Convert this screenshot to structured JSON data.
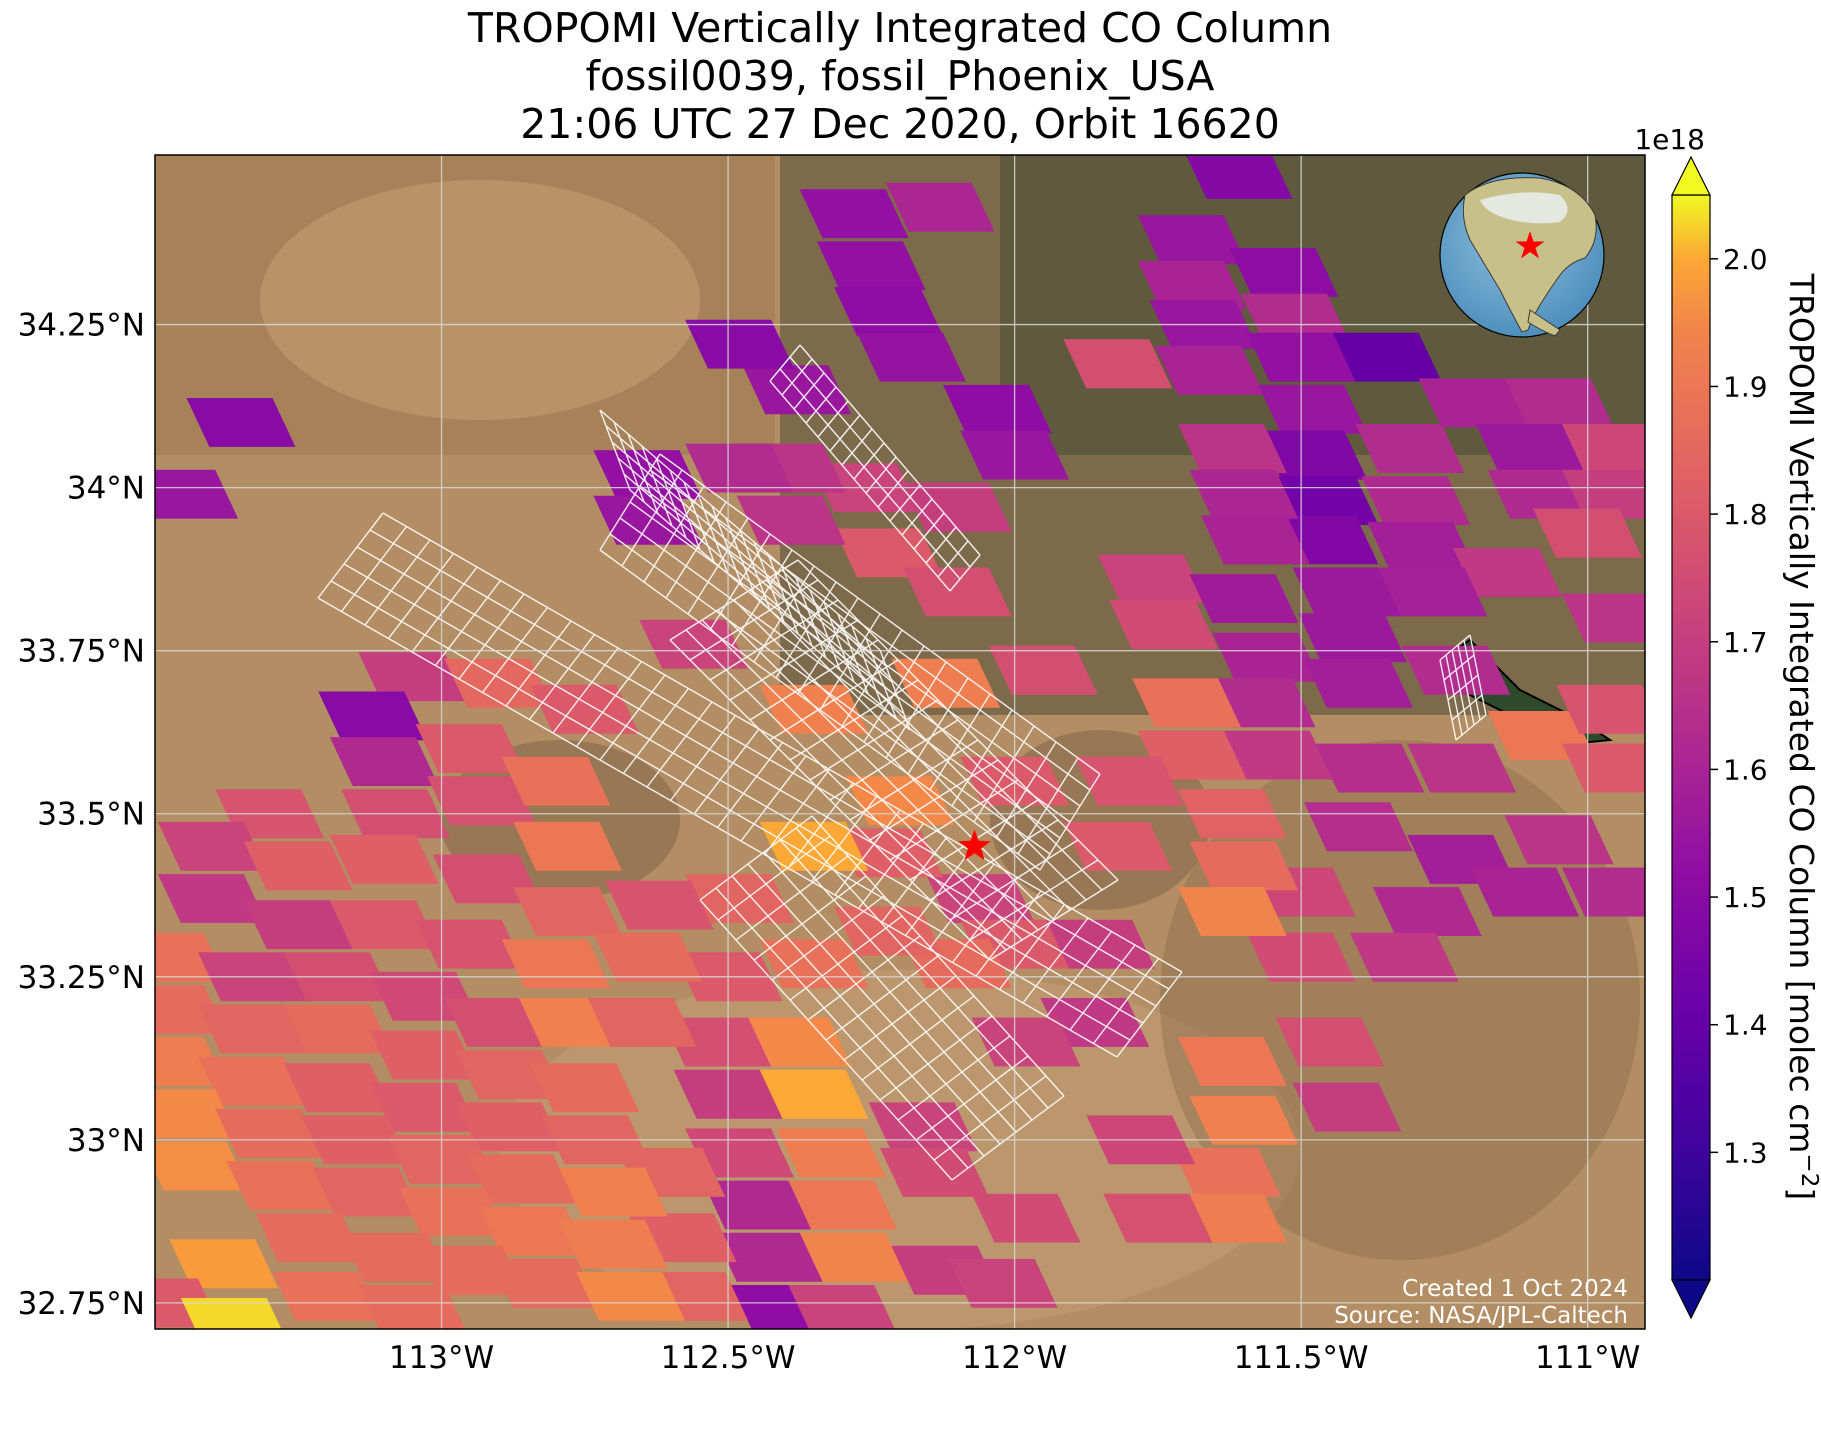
{
  "title": {
    "line1": "TROPOMI Vertically Integrated CO Column",
    "line2": "fossil0039, fossil_Phoenix_USA",
    "line3": "21:06 UTC 27 Dec 2020, Orbit 16620"
  },
  "map": {
    "extent": {
      "lon_min": -113.5,
      "lon_max": -110.9,
      "lat_min": 32.71,
      "lat_max": 34.51
    },
    "site_marker": {
      "lon": -112.07,
      "lat": 33.45,
      "symbol": "star",
      "color": "#ff0000"
    },
    "lat_tick_labels": [
      {
        "lat": 34.25,
        "label": "34.25°N"
      },
      {
        "lat": 34.0,
        "label": "34°N"
      },
      {
        "lat": 33.75,
        "label": "33.75°N"
      },
      {
        "lat": 33.5,
        "label": "33.5°N"
      },
      {
        "lat": 33.25,
        "label": "33.25°N"
      },
      {
        "lat": 33.0,
        "label": "33°N"
      },
      {
        "lat": 32.75,
        "label": "32.75°N"
      }
    ],
    "lon_tick_labels": [
      {
        "lon": -113.0,
        "label": "113°W"
      },
      {
        "lon": -112.5,
        "label": "112.5°W"
      },
      {
        "lon": -112.0,
        "label": "112°W"
      },
      {
        "lon": -111.5,
        "label": "111.5°W"
      },
      {
        "lon": -111.0,
        "label": "111°W"
      }
    ],
    "gridlines": true,
    "basemap": "satellite imagery",
    "inset_globe": {
      "placement": "top-right",
      "marker": "red star over Arizona, USA"
    },
    "credits": {
      "created": "Created 1 Oct 2024",
      "source": "Source: NASA/JPL-Caltech"
    }
  },
  "colorbar": {
    "label": "TROPOMI Vertically Integrated CO Column [molec cm",
    "label_sup": "−2",
    "label_end": "]",
    "multiplier": "1e18",
    "colormap": "plasma",
    "vmin": 1.2,
    "vmax": 2.05,
    "extend": "both",
    "ticks": [
      {
        "value": 1.3,
        "label": "1.3"
      },
      {
        "value": 1.4,
        "label": "1.4"
      },
      {
        "value": 1.5,
        "label": "1.5"
      },
      {
        "value": 1.6,
        "label": "1.6"
      },
      {
        "value": 1.7,
        "label": "1.7"
      },
      {
        "value": 1.8,
        "label": "1.8"
      },
      {
        "value": 1.9,
        "label": "1.9"
      },
      {
        "value": 2.0,
        "label": "2.0"
      }
    ]
  },
  "chart_data": {
    "type": "heatmap",
    "colormap": "plasma",
    "value_units": "1e18 molec cm^-2",
    "pixels": [
      {
        "lon": -111.61,
        "lat": 34.48,
        "v": 1.49
      },
      {
        "lon": -112.28,
        "lat": 34.42,
        "v": 1.53
      },
      {
        "lon": -112.13,
        "lat": 34.43,
        "v": 1.61
      },
      {
        "lon": -112.25,
        "lat": 34.34,
        "v": 1.53
      },
      {
        "lon": -112.22,
        "lat": 34.27,
        "v": 1.52
      },
      {
        "lon": -112.18,
        "lat": 34.2,
        "v": 1.54
      },
      {
        "lon": -111.69,
        "lat": 34.38,
        "v": 1.55
      },
      {
        "lon": -111.69,
        "lat": 34.31,
        "v": 1.6
      },
      {
        "lon": -111.53,
        "lat": 34.33,
        "v": 1.51
      },
      {
        "lon": -111.67,
        "lat": 34.25,
        "v": 1.55
      },
      {
        "lon": -111.51,
        "lat": 34.26,
        "v": 1.63
      },
      {
        "lon": -111.82,
        "lat": 34.19,
        "v": 1.76
      },
      {
        "lon": -111.66,
        "lat": 34.18,
        "v": 1.6
      },
      {
        "lon": -111.5,
        "lat": 34.2,
        "v": 1.53
      },
      {
        "lon": -111.35,
        "lat": 34.2,
        "v": 1.4
      },
      {
        "lon": -111.48,
        "lat": 34.12,
        "v": 1.55
      },
      {
        "lon": -111.48,
        "lat": 34.05,
        "v": 1.47
      },
      {
        "lon": -111.46,
        "lat": 33.98,
        "v": 1.44
      },
      {
        "lon": -111.46,
        "lat": 33.92,
        "v": 1.48
      },
      {
        "lon": -111.62,
        "lat": 34.06,
        "v": 1.66
      },
      {
        "lon": -111.6,
        "lat": 33.99,
        "v": 1.61
      },
      {
        "lon": -111.58,
        "lat": 33.92,
        "v": 1.6
      },
      {
        "lon": -111.31,
        "lat": 34.06,
        "v": 1.63
      },
      {
        "lon": -111.3,
        "lat": 33.98,
        "v": 1.62
      },
      {
        "lon": -111.29,
        "lat": 33.91,
        "v": 1.58
      },
      {
        "lon": -111.2,
        "lat": 34.13,
        "v": 1.6
      },
      {
        "lon": -111.05,
        "lat": 34.13,
        "v": 1.63
      },
      {
        "lon": -111.1,
        "lat": 34.06,
        "v": 1.56
      },
      {
        "lon": -110.95,
        "lat": 34.06,
        "v": 1.73
      },
      {
        "lon": -111.08,
        "lat": 33.99,
        "v": 1.62
      },
      {
        "lon": -110.95,
        "lat": 33.99,
        "v": 1.7
      },
      {
        "lon": -111.0,
        "lat": 33.93,
        "v": 1.76
      },
      {
        "lon": -111.14,
        "lat": 33.87,
        "v": 1.68
      },
      {
        "lon": -110.95,
        "lat": 33.8,
        "v": 1.66
      },
      {
        "lon": -111.76,
        "lat": 33.86,
        "v": 1.72
      },
      {
        "lon": -111.74,
        "lat": 33.79,
        "v": 1.75
      },
      {
        "lon": -111.6,
        "lat": 33.83,
        "v": 1.57
      },
      {
        "lon": -111.56,
        "lat": 33.74,
        "v": 1.6
      },
      {
        "lon": -111.57,
        "lat": 33.67,
        "v": 1.63
      },
      {
        "lon": -111.42,
        "lat": 33.84,
        "v": 1.56
      },
      {
        "lon": -111.41,
        "lat": 33.77,
        "v": 1.56
      },
      {
        "lon": -111.4,
        "lat": 33.7,
        "v": 1.58
      },
      {
        "lon": -111.27,
        "lat": 33.84,
        "v": 1.59
      },
      {
        "lon": -111.23,
        "lat": 33.72,
        "v": 1.63
      },
      {
        "lon": -111.22,
        "lat": 33.57,
        "v": 1.66
      },
      {
        "lon": -111.08,
        "lat": 33.62,
        "v": 1.9
      },
      {
        "lon": -110.96,
        "lat": 33.66,
        "v": 1.78
      },
      {
        "lon": -110.95,
        "lat": 33.57,
        "v": 1.8
      },
      {
        "lon": -111.7,
        "lat": 33.67,
        "v": 1.88
      },
      {
        "lon": -111.69,
        "lat": 33.59,
        "v": 1.82
      },
      {
        "lon": -111.54,
        "lat": 33.59,
        "v": 1.68
      },
      {
        "lon": -111.38,
        "lat": 33.57,
        "v": 1.64
      },
      {
        "lon": -111.4,
        "lat": 33.48,
        "v": 1.64
      },
      {
        "lon": -111.22,
        "lat": 33.43,
        "v": 1.58
      },
      {
        "lon": -111.05,
        "lat": 33.46,
        "v": 1.66
      },
      {
        "lon": -110.95,
        "lat": 33.38,
        "v": 1.63
      },
      {
        "lon": -111.11,
        "lat": 33.38,
        "v": 1.6
      },
      {
        "lon": -111.28,
        "lat": 33.35,
        "v": 1.62
      },
      {
        "lon": -111.5,
        "lat": 33.38,
        "v": 1.73
      },
      {
        "lon": -111.5,
        "lat": 33.28,
        "v": 1.75
      },
      {
        "lon": -111.32,
        "lat": 33.28,
        "v": 1.68
      },
      {
        "lon": -111.45,
        "lat": 33.15,
        "v": 1.76
      },
      {
        "lon": -111.42,
        "lat": 33.05,
        "v": 1.7
      },
      {
        "lon": -111.62,
        "lat": 33.12,
        "v": 1.9
      },
      {
        "lon": -111.6,
        "lat": 33.03,
        "v": 1.93
      },
      {
        "lon": -111.63,
        "lat": 32.95,
        "v": 1.88
      },
      {
        "lon": -111.62,
        "lat": 32.88,
        "v": 1.92
      },
      {
        "lon": -111.78,
        "lat": 33.0,
        "v": 1.73
      },
      {
        "lon": -111.75,
        "lat": 32.88,
        "v": 1.77
      },
      {
        "lon": -111.62,
        "lat": 33.5,
        "v": 1.83
      },
      {
        "lon": -111.6,
        "lat": 33.42,
        "v": 1.86
      },
      {
        "lon": -111.62,
        "lat": 33.35,
        "v": 1.94
      },
      {
        "lon": -111.8,
        "lat": 33.55,
        "v": 1.78
      },
      {
        "lon": -111.82,
        "lat": 33.45,
        "v": 1.8
      },
      {
        "lon": -111.86,
        "lat": 33.18,
        "v": 1.68
      },
      {
        "lon": -111.98,
        "lat": 33.15,
        "v": 1.72
      },
      {
        "lon": -112.06,
        "lat": 33.37,
        "v": 1.72
      },
      {
        "lon": -112.0,
        "lat": 33.3,
        "v": 1.8
      },
      {
        "lon": -112.1,
        "lat": 33.27,
        "v": 1.86
      },
      {
        "lon": -112.2,
        "lat": 33.52,
        "v": 1.95
      },
      {
        "lon": -112.22,
        "lat": 33.44,
        "v": 1.82
      },
      {
        "lon": -112.35,
        "lat": 33.45,
        "v": 2.0
      },
      {
        "lon": -112.22,
        "lat": 33.32,
        "v": 1.84
      },
      {
        "lon": -112.35,
        "lat": 33.27,
        "v": 1.88
      },
      {
        "lon": -112.48,
        "lat": 33.37,
        "v": 1.84
      },
      {
        "lon": -112.5,
        "lat": 33.25,
        "v": 1.8
      },
      {
        "lon": -112.38,
        "lat": 33.15,
        "v": 1.95
      },
      {
        "lon": -112.35,
        "lat": 33.07,
        "v": 2.0
      },
      {
        "lon": -112.32,
        "lat": 32.98,
        "v": 1.92
      },
      {
        "lon": -112.3,
        "lat": 32.9,
        "v": 1.9
      },
      {
        "lon": -112.28,
        "lat": 32.82,
        "v": 1.94
      },
      {
        "lon": -112.52,
        "lat": 33.15,
        "v": 1.76
      },
      {
        "lon": -112.5,
        "lat": 33.07,
        "v": 1.7
      },
      {
        "lon": -112.48,
        "lat": 32.98,
        "v": 1.74
      },
      {
        "lon": -112.45,
        "lat": 32.9,
        "v": 1.62
      },
      {
        "lon": -112.43,
        "lat": 32.82,
        "v": 1.62
      },
      {
        "lon": -112.4,
        "lat": 32.74,
        "v": 1.52
      },
      {
        "lon": -112.6,
        "lat": 32.95,
        "v": 1.84
      },
      {
        "lon": -112.58,
        "lat": 32.85,
        "v": 1.82
      },
      {
        "lon": -112.56,
        "lat": 32.76,
        "v": 1.84
      },
      {
        "lon": -112.16,
        "lat": 33.02,
        "v": 1.72
      },
      {
        "lon": -112.14,
        "lat": 32.95,
        "v": 1.75
      },
      {
        "lon": -112.12,
        "lat": 32.8,
        "v": 1.7
      },
      {
        "lon": -111.98,
        "lat": 32.88,
        "v": 1.75
      },
      {
        "lon": -112.02,
        "lat": 32.78,
        "v": 1.72
      },
      {
        "lon": -112.56,
        "lat": 33.76,
        "v": 1.72
      },
      {
        "lon": -112.35,
        "lat": 33.66,
        "v": 1.93
      },
      {
        "lon": -112.12,
        "lat": 33.7,
        "v": 1.92
      },
      {
        "lon": -111.95,
        "lat": 33.72,
        "v": 1.76
      },
      {
        "lon": -112.22,
        "lat": 33.9,
        "v": 1.8
      },
      {
        "lon": -112.1,
        "lat": 33.84,
        "v": 1.76
      },
      {
        "lon": -112.1,
        "lat": 33.97,
        "v": 1.7
      },
      {
        "lon": -112.26,
        "lat": 34.0,
        "v": 1.72
      },
      {
        "lon": -112.39,
        "lat": 34.03,
        "v": 1.66
      },
      {
        "lon": -112.39,
        "lat": 33.95,
        "v": 1.66
      },
      {
        "lon": -112.48,
        "lat": 34.03,
        "v": 1.63
      },
      {
        "lon": -112.38,
        "lat": 34.15,
        "v": 1.55
      },
      {
        "lon": -112.48,
        "lat": 34.22,
        "v": 1.5
      },
      {
        "lon": -112.03,
        "lat": 34.12,
        "v": 1.52
      },
      {
        "lon": -112.0,
        "lat": 34.05,
        "v": 1.55
      },
      {
        "lon": -112.64,
        "lat": 34.02,
        "v": 1.53
      },
      {
        "lon": -112.64,
        "lat": 33.95,
        "v": 1.55
      },
      {
        "lon": -113.35,
        "lat": 34.1,
        "v": 1.5
      },
      {
        "lon": -113.45,
        "lat": 33.99,
        "v": 1.55
      },
      {
        "lon": -113.05,
        "lat": 33.71,
        "v": 1.7
      },
      {
        "lon": -112.9,
        "lat": 33.7,
        "v": 1.85
      },
      {
        "lon": -112.75,
        "lat": 33.66,
        "v": 1.8
      },
      {
        "lon": -113.12,
        "lat": 33.65,
        "v": 1.5
      },
      {
        "lon": -113.1,
        "lat": 33.58,
        "v": 1.62
      },
      {
        "lon": -113.08,
        "lat": 33.5,
        "v": 1.76
      },
      {
        "lon": -112.95,
        "lat": 33.6,
        "v": 1.8
      },
      {
        "lon": -112.93,
        "lat": 33.52,
        "v": 1.77
      },
      {
        "lon": -112.8,
        "lat": 33.55,
        "v": 1.88
      },
      {
        "lon": -112.78,
        "lat": 33.45,
        "v": 1.9
      },
      {
        "lon": -113.3,
        "lat": 33.5,
        "v": 1.78
      },
      {
        "lon": -113.4,
        "lat": 33.45,
        "v": 1.72
      },
      {
        "lon": -113.25,
        "lat": 33.42,
        "v": 1.82
      },
      {
        "lon": -113.1,
        "lat": 33.43,
        "v": 1.82
      },
      {
        "lon": -112.92,
        "lat": 33.4,
        "v": 1.76
      },
      {
        "lon": -112.78,
        "lat": 33.35,
        "v": 1.84
      },
      {
        "lon": -112.62,
        "lat": 33.36,
        "v": 1.78
      },
      {
        "lon": -113.4,
        "lat": 33.37,
        "v": 1.68
      },
      {
        "lon": -113.25,
        "lat": 33.33,
        "v": 1.7
      },
      {
        "lon": -113.1,
        "lat": 33.33,
        "v": 1.8
      },
      {
        "lon": -112.95,
        "lat": 33.3,
        "v": 1.78
      },
      {
        "lon": -112.8,
        "lat": 33.27,
        "v": 1.9
      },
      {
        "lon": -112.64,
        "lat": 33.28,
        "v": 1.86
      },
      {
        "lon": -113.47,
        "lat": 33.28,
        "v": 1.88
      },
      {
        "lon": -113.33,
        "lat": 33.25,
        "v": 1.72
      },
      {
        "lon": -113.18,
        "lat": 33.25,
        "v": 1.76
      },
      {
        "lon": -113.03,
        "lat": 33.22,
        "v": 1.74
      },
      {
        "lon": -112.9,
        "lat": 33.18,
        "v": 1.76
      },
      {
        "lon": -112.77,
        "lat": 33.18,
        "v": 1.93
      },
      {
        "lon": -112.65,
        "lat": 33.18,
        "v": 1.84
      },
      {
        "lon": -113.47,
        "lat": 33.2,
        "v": 1.86
      },
      {
        "lon": -113.33,
        "lat": 33.17,
        "v": 1.84
      },
      {
        "lon": -113.18,
        "lat": 33.17,
        "v": 1.86
      },
      {
        "lon": -113.03,
        "lat": 33.13,
        "v": 1.82
      },
      {
        "lon": -112.88,
        "lat": 33.1,
        "v": 1.84
      },
      {
        "lon": -112.75,
        "lat": 33.08,
        "v": 1.86
      },
      {
        "lon": -113.47,
        "lat": 33.12,
        "v": 1.92
      },
      {
        "lon": -113.33,
        "lat": 33.09,
        "v": 1.88
      },
      {
        "lon": -113.18,
        "lat": 33.08,
        "v": 1.82
      },
      {
        "lon": -113.03,
        "lat": 33.05,
        "v": 1.8
      },
      {
        "lon": -112.88,
        "lat": 33.02,
        "v": 1.82
      },
      {
        "lon": -112.73,
        "lat": 33.0,
        "v": 1.84
      },
      {
        "lon": -113.45,
        "lat": 33.04,
        "v": 1.95
      },
      {
        "lon": -113.3,
        "lat": 33.01,
        "v": 1.86
      },
      {
        "lon": -113.15,
        "lat": 33.0,
        "v": 1.82
      },
      {
        "lon": -113.0,
        "lat": 32.97,
        "v": 1.84
      },
      {
        "lon": -112.86,
        "lat": 32.94,
        "v": 1.86
      },
      {
        "lon": -112.7,
        "lat": 32.92,
        "v": 1.93
      },
      {
        "lon": -113.43,
        "lat": 32.96,
        "v": 1.96
      },
      {
        "lon": -113.28,
        "lat": 32.93,
        "v": 1.88
      },
      {
        "lon": -113.13,
        "lat": 32.92,
        "v": 1.84
      },
      {
        "lon": -112.98,
        "lat": 32.89,
        "v": 1.88
      },
      {
        "lon": -112.84,
        "lat": 32.86,
        "v": 1.9
      },
      {
        "lon": -112.7,
        "lat": 32.84,
        "v": 1.92
      },
      {
        "lon": -113.23,
        "lat": 32.85,
        "v": 1.86
      },
      {
        "lon": -113.08,
        "lat": 32.82,
        "v": 1.86
      },
      {
        "lon": -112.95,
        "lat": 32.8,
        "v": 1.86
      },
      {
        "lon": -112.82,
        "lat": 32.78,
        "v": 1.86
      },
      {
        "lon": -112.67,
        "lat": 32.76,
        "v": 1.95
      },
      {
        "lon": -113.38,
        "lat": 32.81,
        "v": 1.98
      },
      {
        "lon": -113.48,
        "lat": 32.75,
        "v": 1.8
      },
      {
        "lon": -113.36,
        "lat": 32.72,
        "v": 2.03
      },
      {
        "lon": -113.2,
        "lat": 32.76,
        "v": 1.88
      },
      {
        "lon": -113.05,
        "lat": 32.74,
        "v": 1.86
      },
      {
        "lon": -112.3,
        "lat": 32.74,
        "v": 1.72
      },
      {
        "lon": -112.0,
        "lat": 33.55,
        "v": 1.8
      },
      {
        "lon": -111.85,
        "lat": 33.3,
        "v": 1.7
      }
    ],
    "footprint_outlines": "white quadrilateral grids (target-mode soundings) overlaid across central region"
  }
}
